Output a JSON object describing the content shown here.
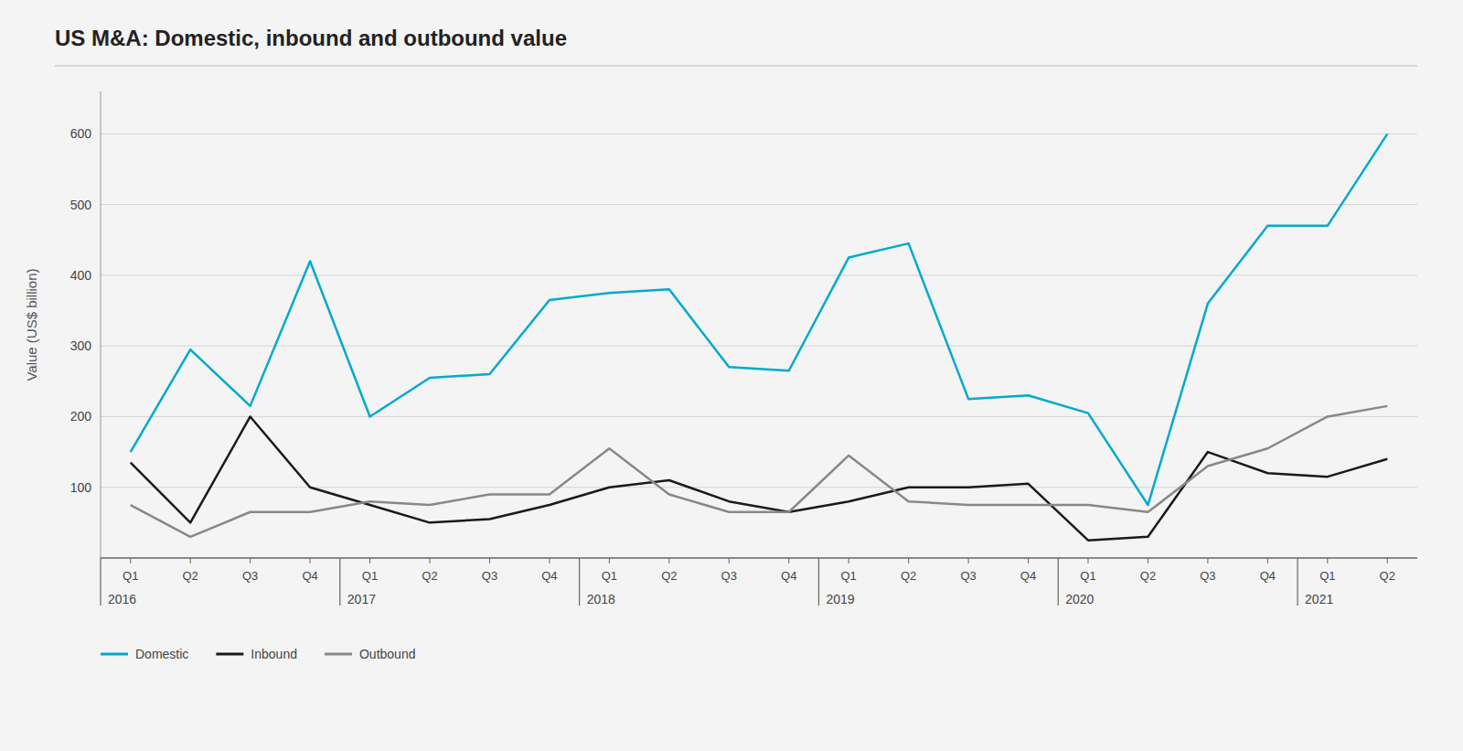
{
  "chart_data": {
    "type": "line",
    "title": "US M&A: Domestic, inbound and outbound value",
    "y_label": "Value (US$ billion)",
    "categories": [
      "Q1",
      "Q2",
      "Q3",
      "Q4",
      "Q1",
      "Q2",
      "Q3",
      "Q4",
      "Q1",
      "Q2",
      "Q3",
      "Q4",
      "Q1",
      "Q2",
      "Q3",
      "Q4",
      "Q1",
      "Q2",
      "Q3",
      "Q4",
      "Q1",
      "Q2"
    ],
    "annotations": [
      {
        "text": "2016",
        "x": 0
      },
      {
        "text": "2017",
        "x": 4
      },
      {
        "text": "2018",
        "x": 8
      },
      {
        "text": "2019",
        "x": 12
      },
      {
        "text": "2020",
        "x": 16
      },
      {
        "text": "2021",
        "x": 20
      }
    ],
    "series": [
      {
        "name": "Domestic",
        "color": "#00aacc",
        "values": [
          150,
          295,
          215,
          420,
          200,
          255,
          260,
          365,
          375,
          380,
          270,
          265,
          425,
          445,
          225,
          230,
          205,
          75,
          360,
          470,
          470,
          600
        ]
      },
      {
        "name": "Inbound",
        "color": "#1a1a1a",
        "values": [
          135,
          50,
          200,
          100,
          75,
          50,
          55,
          75,
          100,
          110,
          80,
          65,
          80,
          100,
          100,
          105,
          25,
          30,
          150,
          120,
          115,
          140
        ]
      },
      {
        "name": "Outbound",
        "color": "#888888",
        "values": [
          75,
          30,
          65,
          65,
          80,
          75,
          90,
          90,
          155,
          90,
          65,
          65,
          145,
          80,
          75,
          75,
          75,
          65,
          130,
          155,
          200,
          215
        ]
      }
    ],
    "ylim": [
      0,
      660
    ],
    "yticks": [
      100,
      200,
      300,
      400,
      500,
      600
    ],
    "grid": true,
    "legend": "bottom"
  }
}
